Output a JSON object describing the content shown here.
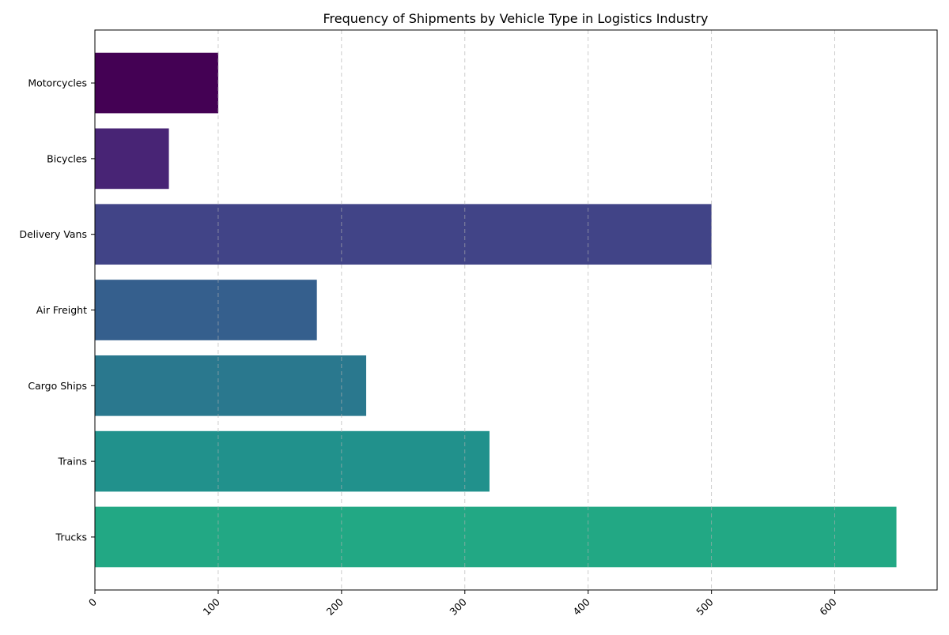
{
  "chart_data": {
    "type": "bar",
    "orientation": "horizontal",
    "title": "Frequency of Shipments by Vehicle Type in Logistics Industry",
    "xlabel": "",
    "ylabel": "",
    "categories": [
      "Trucks",
      "Trains",
      "Cargo Ships",
      "Air Freight",
      "Delivery Vans",
      "Bicycles",
      "Motorcycles"
    ],
    "values": [
      650,
      320,
      220,
      180,
      500,
      60,
      100
    ],
    "colors": [
      "#22a884",
      "#21918c",
      "#2a788e",
      "#355f8d",
      "#414487",
      "#482475",
      "#440154"
    ],
    "xlim": [
      0,
      683
    ],
    "xticks": [
      0,
      100,
      200,
      300,
      400,
      500,
      600
    ],
    "xtick_rotation": 45,
    "grid": "x-axis, dashed"
  }
}
